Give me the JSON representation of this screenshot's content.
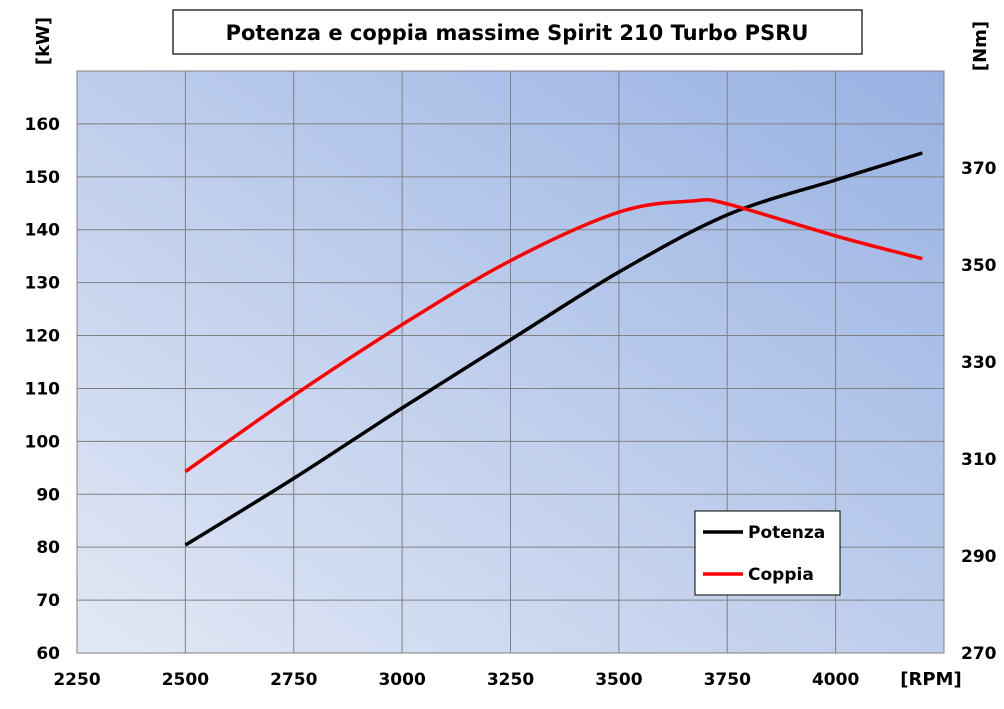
{
  "chart_data": {
    "type": "line",
    "title": "Potenza e coppia massime Spirit 210 Turbo PSRU",
    "xlabel": "[RPM]",
    "ylabel_left": "[kW]",
    "ylabel_right": "[Nm]",
    "xlim": [
      2250,
      4250
    ],
    "ylim_left": [
      60,
      170
    ],
    "ylim_right": [
      270,
      390
    ],
    "x_ticks": [
      2250,
      2500,
      2750,
      3000,
      3250,
      3500,
      3750,
      4000
    ],
    "y_ticks_left": [
      60,
      70,
      80,
      90,
      100,
      110,
      120,
      130,
      140,
      150,
      160
    ],
    "y_ticks_right": [
      270,
      290,
      310,
      330,
      350,
      370
    ],
    "grid": true,
    "legend_position": "bottom-right",
    "series": [
      {
        "name": "Potenza",
        "axis": "left",
        "color": "#000000",
        "x": [
          2500,
          2750,
          3000,
          3250,
          3500,
          3750,
          4000,
          4200
        ],
        "y": [
          80.4,
          93.0,
          106.3,
          119.2,
          132.0,
          142.8,
          149.4,
          154.5
        ]
      },
      {
        "name": "Coppia",
        "axis": "right",
        "color": "#ff0000",
        "x": [
          2500,
          2750,
          3000,
          3250,
          3500,
          3670,
          3750,
          4000,
          4200
        ],
        "y": [
          307.4,
          323.1,
          337.7,
          350.9,
          360.9,
          363.2,
          362.6,
          356.0,
          351.3
        ]
      }
    ]
  }
}
